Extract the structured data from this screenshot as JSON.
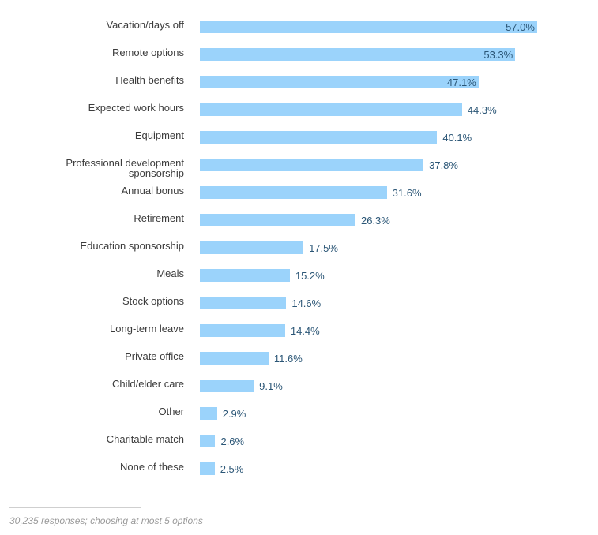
{
  "chart_data": {
    "type": "bar",
    "orientation": "horizontal",
    "title": "",
    "xlabel": "",
    "ylabel": "",
    "value_suffix": "%",
    "xlim": [
      0,
      100
    ],
    "grid": false,
    "bar_color": "#9bd3fb",
    "label_color": "#2b5676",
    "categories": [
      "Vacation/days off",
      "Remote options",
      "Health benefits",
      "Expected work hours",
      "Equipment",
      "Professional development sponsorship",
      "Annual bonus",
      "Retirement",
      "Education sponsorship",
      "Meals",
      "Stock options",
      "Long-term leave",
      "Private office",
      "Child/elder care",
      "Other",
      "Charitable match",
      "None of these"
    ],
    "category_lines": [
      [
        "Vacation/days off"
      ],
      [
        "Remote options"
      ],
      [
        "Health benefits"
      ],
      [
        "Expected work hours"
      ],
      [
        "Equipment"
      ],
      [
        "Professional development",
        "sponsorship"
      ],
      [
        "Annual bonus"
      ],
      [
        "Retirement"
      ],
      [
        "Education sponsorship"
      ],
      [
        "Meals"
      ],
      [
        "Stock options"
      ],
      [
        "Long-term leave"
      ],
      [
        "Private office"
      ],
      [
        "Child/elder care"
      ],
      [
        "Other"
      ],
      [
        "Charitable match"
      ],
      [
        "None of these"
      ]
    ],
    "values": [
      57.0,
      53.3,
      47.1,
      44.3,
      40.1,
      37.8,
      31.6,
      26.3,
      17.5,
      15.2,
      14.6,
      14.4,
      11.6,
      9.1,
      2.9,
      2.6,
      2.5
    ],
    "value_labels": [
      "57.0%",
      "53.3%",
      "47.1%",
      "44.3%",
      "40.1%",
      "37.8%",
      "31.6%",
      "26.3%",
      "17.5%",
      "15.2%",
      "14.6%",
      "14.4%",
      "11.6%",
      "9.1%",
      "2.9%",
      "2.6%",
      "2.5%"
    ],
    "inside_label_threshold": 47
  },
  "footer": {
    "note": "30,235 responses; choosing at most 5 options"
  }
}
